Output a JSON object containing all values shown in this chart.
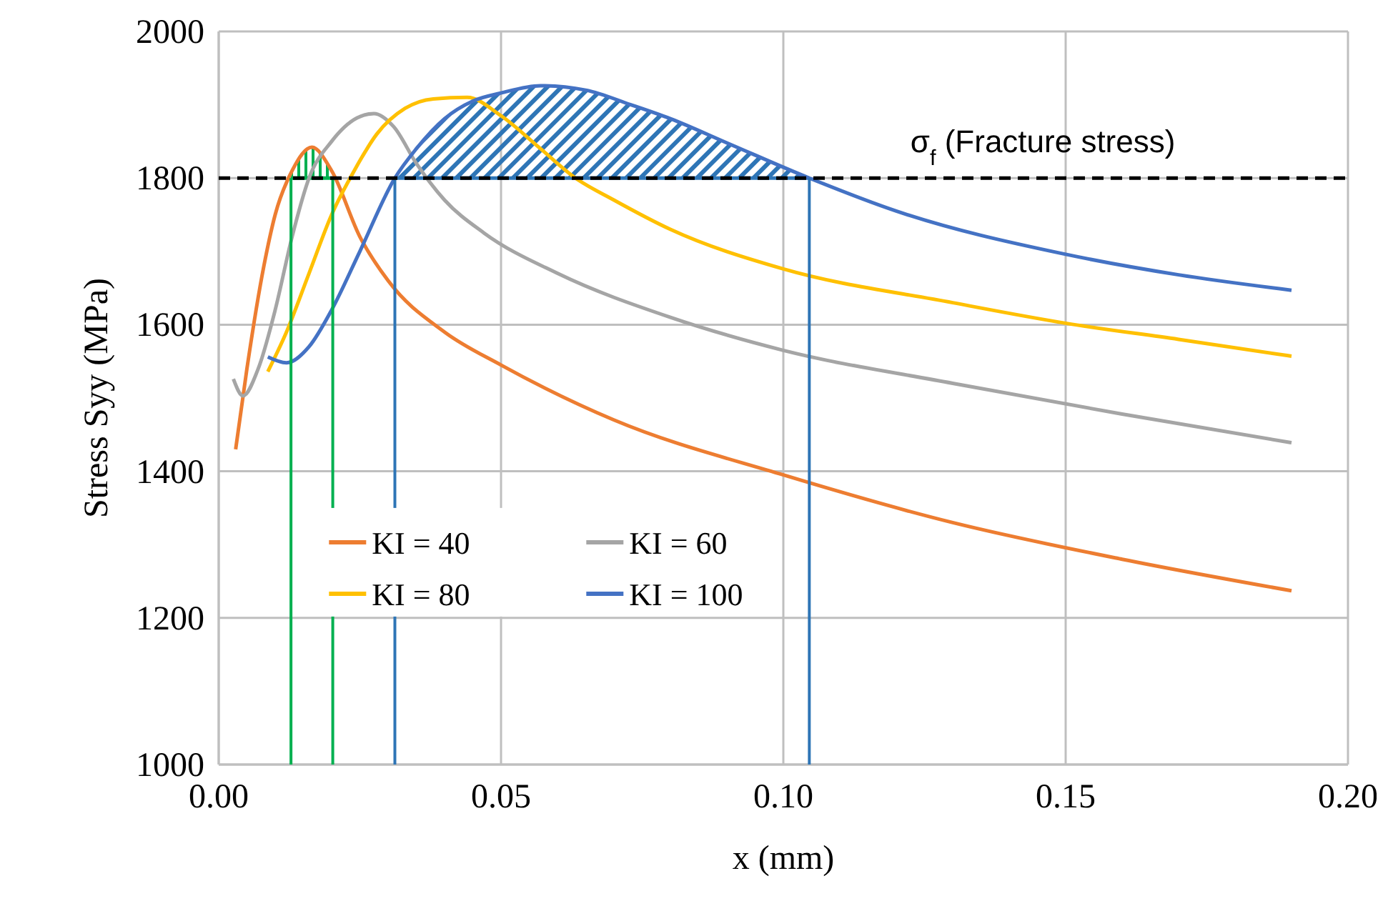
{
  "chart_data": {
    "type": "line",
    "xlabel": "x (mm)",
    "ylabel": "Stress Syy (MPa)",
    "xlim": [
      0,
      0.2
    ],
    "xticks": [
      {
        "value": 0,
        "label": "0.00"
      },
      {
        "value": 0.05,
        "label": "0.05"
      },
      {
        "value": 0.1,
        "label": "0.10"
      },
      {
        "value": 0.15,
        "label": "0.15"
      },
      {
        "value": 0.2,
        "label": "0.20"
      }
    ],
    "ylim": [
      1000,
      2000
    ],
    "yticks": [
      1000,
      1200,
      1400,
      1600,
      1800,
      2000
    ],
    "grid": true,
    "legend": "bottom left",
    "marker": "none",
    "line_style": "solid",
    "series": [
      {
        "name": "KI = 40",
        "color": "#ed7d31",
        "x": [
          0.003,
          0.005,
          0.008,
          0.01,
          0.013,
          0.0165,
          0.02,
          0.025,
          0.03,
          0.04,
          0.05,
          0.07,
          0.1,
          0.13,
          0.16,
          0.19
        ],
        "values": [
          1430,
          1540,
          1680,
          1750,
          1810,
          1842,
          1810,
          1720,
          1660,
          1590,
          1545,
          1470,
          1395,
          1330,
          1280,
          1237
        ]
      },
      {
        "name": "KI = 60",
        "color": "#a5a5a5",
        "x": [
          0.0026,
          0.0043,
          0.007,
          0.01,
          0.013,
          0.016,
          0.02,
          0.0245,
          0.0275,
          0.031,
          0.035,
          0.04,
          0.047,
          0.06,
          0.08,
          0.1,
          0.13,
          0.16,
          0.19
        ],
        "values": [
          1526,
          1503,
          1540,
          1620,
          1720,
          1800,
          1850,
          1882,
          1888,
          1870,
          1820,
          1770,
          1725,
          1670,
          1610,
          1565,
          1520,
          1478,
          1439
        ]
      },
      {
        "name": "KI = 80",
        "color": "#ffc000",
        "x": [
          0.0087,
          0.012,
          0.016,
          0.02,
          0.024,
          0.028,
          0.033,
          0.038,
          0.044,
          0.05,
          0.057,
          0.063,
          0.07,
          0.08,
          0.1,
          0.13,
          0.15,
          0.17,
          0.19
        ],
        "values": [
          1536,
          1590,
          1670,
          1750,
          1810,
          1860,
          1895,
          1908,
          1910,
          1885,
          1840,
          1801,
          1770,
          1730,
          1676,
          1630,
          1602,
          1580,
          1557
        ]
      },
      {
        "name": "KI = 100",
        "color": "#4472c4",
        "x": [
          0.0087,
          0.012,
          0.016,
          0.02,
          0.025,
          0.0312,
          0.035,
          0.04,
          0.045,
          0.05,
          0.057,
          0.065,
          0.073,
          0.08,
          0.09,
          0.1046,
          0.12,
          0.15,
          0.17,
          0.19
        ],
        "values": [
          1556,
          1548,
          1570,
          1620,
          1700,
          1800,
          1840,
          1881,
          1905,
          1916,
          1926,
          1920,
          1900,
          1881,
          1848,
          1800,
          1755,
          1696,
          1668,
          1647
        ]
      }
    ],
    "ref_lines": [
      {
        "axis": "y",
        "value": 1800,
        "label": "σ$_{f}$ (Fracture stress)",
        "color": "#000000",
        "line_style": "dashed"
      },
      {
        "axis": "x",
        "value": 0.0128,
        "color": "#00b050",
        "line_style": "solid"
      },
      {
        "axis": "x",
        "value": 0.0202,
        "color": "#00b050",
        "line_style": "solid"
      },
      {
        "axis": "x",
        "value": 0.0312,
        "color": "#2e75b6",
        "line_style": "solid"
      },
      {
        "axis": "x",
        "value": 0.1046,
        "color": "#2e75b6",
        "line_style": "solid"
      }
    ]
  }
}
